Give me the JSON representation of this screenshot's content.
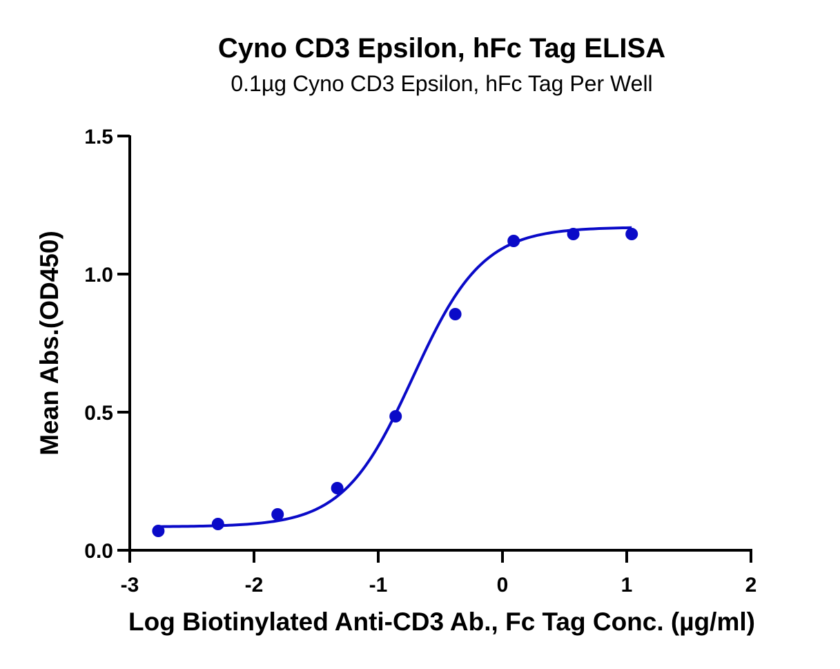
{
  "chart_data": {
    "type": "scatter",
    "title": "Cyno CD3 Epsilon, hFc Tag ELISA",
    "subtitle": "0.1µg Cyno CD3 Epsilon, hFc Tag Per Well",
    "xlabel": "Log Biotinylated Anti-CD3 Ab., Fc Tag Conc. (µg/ml)",
    "ylabel": "Mean Abs.(OD450)",
    "xlim": [
      -3,
      2
    ],
    "ylim": [
      0,
      1.5
    ],
    "xticks": [
      -3,
      -2,
      -1,
      0,
      1,
      2
    ],
    "xtick_labels": [
      "-3",
      "-2",
      "-1",
      "0",
      "1",
      "2"
    ],
    "yticks": [
      0,
      0.5,
      1.0,
      1.5
    ],
    "ytick_labels": [
      "0.0",
      "0.5",
      "1.0",
      "1.5"
    ],
    "grid": false,
    "color": "#0a0ac8",
    "series": [
      {
        "x": [
          -2.77,
          -2.29,
          -1.81,
          -1.33,
          -0.86,
          -0.38,
          0.09,
          0.57,
          1.04
        ],
        "y": [
          0.07,
          0.095,
          0.13,
          0.225,
          0.485,
          0.855,
          1.12,
          1.145,
          1.145
        ]
      }
    ],
    "fit": {
      "type": "4PL",
      "bottom": 0.085,
      "top": 1.17,
      "logEC50": -0.72,
      "hill": 1.55,
      "xrange": [
        -2.77,
        1.04
      ]
    }
  }
}
